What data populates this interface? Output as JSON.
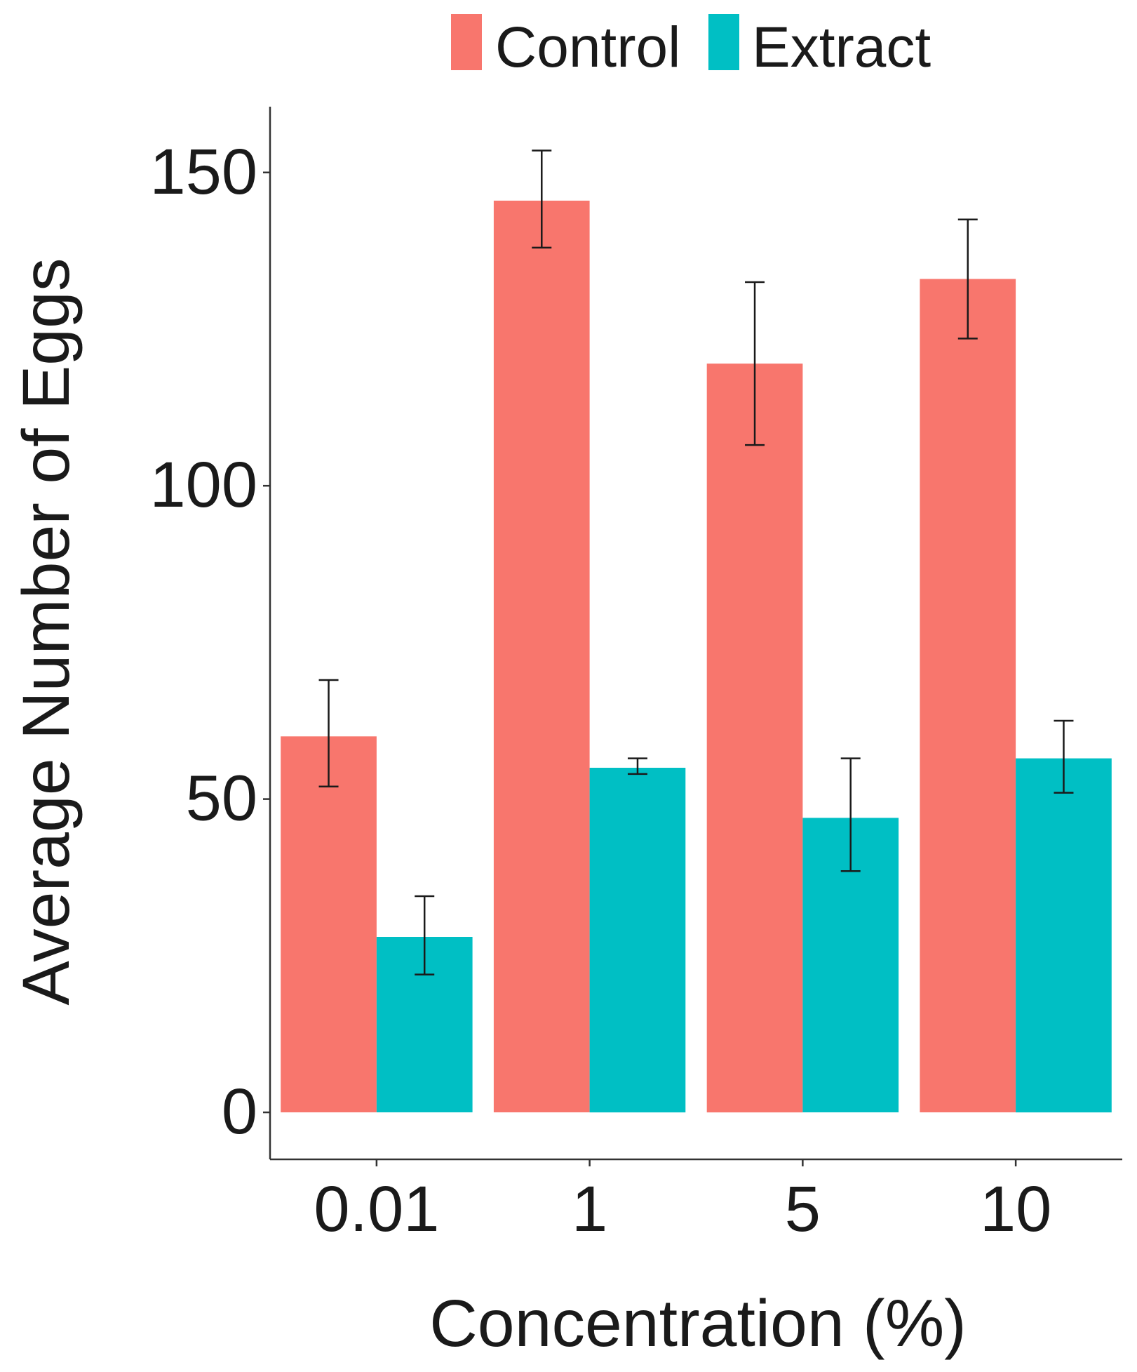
{
  "chart_data": {
    "type": "bar",
    "title": "",
    "xlabel": "Concentration (%)",
    "ylabel": "Average Number of Eggs",
    "categories": [
      "0.01",
      "1",
      "5",
      "10"
    ],
    "ylim": [
      -7.5,
      160.5
    ],
    "yticks": [
      0,
      50,
      100,
      150
    ],
    "grid": false,
    "legend": {
      "position": "top",
      "entries": [
        "Control",
        "Extract"
      ]
    },
    "series": [
      {
        "name": "Control",
        "color": "#F8766D",
        "values": [
          60,
          145.5,
          119.5,
          133
        ],
        "error_low": [
          52,
          138,
          106.5,
          123.5
        ],
        "error_high": [
          69,
          153.5,
          132.5,
          142.5
        ]
      },
      {
        "name": "Extract",
        "color": "#00BFC4",
        "values": [
          28,
          55,
          47,
          56.5
        ],
        "error_low": [
          22,
          54,
          38.5,
          51
        ],
        "error_high": [
          34.5,
          56.5,
          56.5,
          62.5
        ]
      }
    ]
  }
}
